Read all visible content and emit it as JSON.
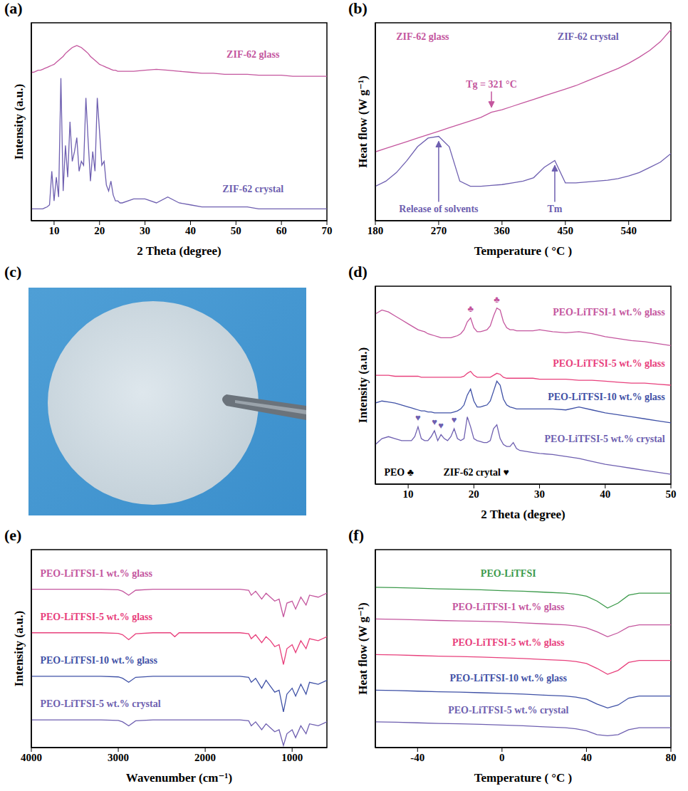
{
  "chart_data": [
    {
      "panel": "(a)",
      "type": "line",
      "x_label": "2 Theta (degree)",
      "y_label": "Intensity (a.u.)",
      "tick_labels": "x",
      "grid": false,
      "xlim": [
        5,
        70
      ],
      "xticks": [
        10,
        20,
        30,
        40,
        50,
        60,
        70
      ],
      "ylim": [
        0,
        100
      ],
      "x": [
        5,
        5.5,
        6,
        6.5,
        7,
        7.5,
        8,
        8.5,
        9,
        9.5,
        10,
        10.5,
        11,
        11.5,
        12,
        12.5,
        13,
        13.5,
        14,
        14.5,
        15,
        15.5,
        16,
        16.5,
        17,
        17.5,
        18,
        18.5,
        19,
        19.5,
        20,
        20.5,
        21,
        21.5,
        22,
        22.5,
        23,
        23.5,
        24,
        24.5,
        25,
        27.5,
        30,
        32.5,
        35,
        37.5,
        40,
        42.5,
        45,
        47.5,
        50,
        52.5,
        55,
        57.5,
        60,
        62.5,
        65,
        67.5,
        70
      ],
      "series": [
        {
          "name": "ZIF-62 glass",
          "color": "#c4569e",
          "values": [
            75,
            75,
            75.5,
            76,
            76,
            76.5,
            77,
            77.5,
            78,
            78.5,
            79,
            80,
            81,
            82,
            83,
            84.5,
            85.5,
            86.5,
            87.5,
            88,
            88.5,
            88,
            87.5,
            86.5,
            85.5,
            84.5,
            83,
            82,
            81,
            80,
            79,
            78.5,
            78,
            77.5,
            77,
            76.5,
            76,
            76,
            75.5,
            75.5,
            75.5,
            75.5,
            76,
            76.5,
            76,
            75.5,
            75,
            74.5,
            74.5,
            74,
            74,
            74,
            73.5,
            73.5,
            73.5,
            73,
            73,
            73,
            73
          ]
        },
        {
          "name": "ZIF-62 crystal",
          "color": "#6e5fb0",
          "values": [
            6,
            6,
            6,
            6,
            6,
            6,
            6.5,
            7,
            8,
            25,
            10,
            22,
            12,
            72,
            15,
            38,
            22,
            50,
            30,
            35,
            42,
            25,
            30,
            28,
            62,
            40,
            20,
            35,
            25,
            62,
            45,
            28,
            30,
            18,
            15,
            20,
            13,
            10,
            10,
            9,
            9,
            11,
            11,
            9,
            12,
            9,
            8,
            7,
            7,
            7,
            7,
            7,
            6,
            6,
            6,
            6,
            6,
            6,
            6
          ]
        }
      ]
    },
    {
      "panel": "(b)",
      "type": "line",
      "x_label": "Temperature ( °C )",
      "y_label": "Heat flow (W g⁻¹)",
      "tick_labels": "x",
      "grid": false,
      "xlim": [
        180,
        600
      ],
      "xticks": [
        180,
        270,
        360,
        450,
        540
      ],
      "ylim": [
        -15,
        100
      ],
      "x": [
        180,
        195,
        210,
        225,
        240,
        255,
        270,
        285,
        300,
        315,
        330,
        345,
        360,
        375,
        390,
        405,
        420,
        435,
        450,
        465,
        480,
        495,
        510,
        525,
        540,
        555,
        570,
        585,
        600
      ],
      "series": [
        {
          "name": "ZIF-62 glass",
          "color": "#c4569e",
          "values": [
            25,
            27,
            29,
            31,
            33,
            35,
            37,
            39,
            41,
            43,
            45,
            48,
            49.5,
            51.5,
            53.5,
            55.5,
            57.5,
            59.5,
            61.5,
            63.5,
            66,
            68.5,
            71,
            73.5,
            76.5,
            80,
            84,
            89,
            96
          ]
        },
        {
          "name": "ZIF-62 crystal",
          "color": "#6e5fb0",
          "values": [
            5,
            8,
            13,
            20,
            28,
            33,
            34,
            28,
            8,
            5,
            5,
            5.5,
            6,
            7,
            8,
            10,
            16,
            20,
            7,
            7,
            7.5,
            8,
            8.5,
            9.5,
            11,
            13,
            16,
            19,
            24
          ]
        }
      ],
      "annotations": [
        {
          "text": "Tg = 321 °C",
          "x": 345,
          "series": "ZIF-62 glass"
        },
        {
          "text": "Release of solvents",
          "x": 270,
          "series": "ZIF-62 crystal"
        },
        {
          "text": "Tm",
          "x": 435,
          "series": "ZIF-62 crystal"
        }
      ]
    },
    {
      "panel": "(c)",
      "type": "image"
    },
    {
      "panel": "(d)",
      "type": "line",
      "x_label": "2 Theta (degree)",
      "y_label": "Intensity (a.u.)",
      "tick_labels": "x",
      "grid": false,
      "xlim": [
        5,
        50
      ],
      "xticks": [
        10,
        20,
        30,
        40,
        50
      ],
      "ylim": [
        0,
        100
      ],
      "x": [
        5,
        6,
        7,
        8,
        9,
        10,
        10.5,
        11,
        11.5,
        12,
        12.5,
        13,
        13.5,
        14,
        14.5,
        15,
        15.5,
        16,
        16.5,
        17,
        17.5,
        18,
        18.5,
        19,
        19.5,
        20,
        20.5,
        21,
        21.5,
        22,
        22.5,
        23,
        23.5,
        24,
        24.5,
        25,
        25.5,
        26,
        26.5,
        27,
        28,
        29,
        30,
        32,
        34,
        36,
        38,
        40,
        42,
        44,
        46,
        48,
        50
      ],
      "series": [
        {
          "name": "PEO-LiTFSI-1 wt.% glass",
          "color": "#c4569e",
          "values": [
            86,
            88,
            87,
            85,
            83,
            81,
            80,
            79,
            78,
            77.5,
            77,
            76,
            75.5,
            75,
            74.5,
            74,
            74,
            74,
            74,
            74.5,
            75,
            76,
            78,
            82,
            84,
            79,
            77,
            77,
            77.5,
            78,
            80,
            85,
            89,
            88,
            82,
            79,
            78,
            78,
            77.5,
            77.5,
            77.5,
            77.5,
            78,
            77,
            76.5,
            77,
            76,
            74.5,
            73.5,
            72.5,
            72,
            71,
            70
          ]
        },
        {
          "name": "PEO-LiTFSI-5 wt.% glass",
          "color": "#e8407c",
          "values": [
            55,
            55,
            55,
            54.5,
            54.5,
            54.5,
            54.5,
            54.5,
            54.5,
            54,
            54,
            54,
            54,
            54,
            54,
            54,
            54,
            54,
            54,
            54,
            54,
            54,
            54.5,
            56,
            57,
            55,
            54,
            54,
            54,
            54,
            54,
            55,
            56,
            55.5,
            54,
            53.5,
            53.5,
            53.5,
            53.5,
            53.5,
            53.5,
            53.5,
            53,
            53,
            53,
            52.5,
            52.5,
            52,
            51.5,
            51,
            51,
            50.5,
            50
          ]
        },
        {
          "name": "PEO-LiTFSI-10 wt.% glass",
          "color": "#3f51a6",
          "values": [
            41,
            42,
            41.5,
            41,
            40,
            39,
            38.5,
            38,
            37.5,
            37,
            37,
            36.5,
            36.5,
            36,
            36,
            36,
            36,
            36,
            36,
            36.5,
            37,
            38,
            40,
            45,
            48,
            42,
            39,
            39,
            39.5,
            40,
            42,
            47,
            52,
            50,
            43,
            40,
            39,
            38.5,
            38,
            38,
            38,
            38,
            38,
            38,
            37.5,
            39,
            37.5,
            36,
            35,
            34,
            33,
            32,
            31
          ]
        },
        {
          "name": "PEO-LiTFSI-5 wt.% crystal",
          "color": "#6e5fb0",
          "values": [
            20,
            23,
            24,
            23,
            22,
            22,
            22,
            24,
            29,
            23,
            22,
            22,
            24,
            27,
            22,
            25,
            23,
            22,
            24,
            28,
            23,
            22,
            23,
            34,
            29,
            23,
            22,
            21.5,
            21,
            21,
            22,
            28,
            30,
            23,
            20,
            19,
            19,
            21,
            18,
            17,
            16.5,
            16,
            15.5,
            15,
            14,
            13,
            11.5,
            10,
            9,
            8,
            7,
            6,
            5
          ]
        }
      ],
      "markers": [
        {
          "text": "♣",
          "x": 19.5,
          "series": "PEO-LiTFSI-1 wt.% glass"
        },
        {
          "text": "♣",
          "x": 23.5,
          "series": "PEO-LiTFSI-1 wt.% glass"
        },
        {
          "text": "♥",
          "x": 11.5,
          "series": "PEO-LiTFSI-5 wt.% crystal"
        },
        {
          "text": "♥",
          "x": 14,
          "series": "PEO-LiTFSI-5 wt.% crystal"
        },
        {
          "text": "♥",
          "x": 15,
          "series": "PEO-LiTFSI-5 wt.% crystal"
        },
        {
          "text": "♥",
          "x": 17,
          "series": "PEO-LiTFSI-5 wt.% crystal"
        }
      ],
      "annotations": [
        "PEO ♣",
        "ZIF-62 crytal ♥"
      ]
    },
    {
      "panel": "(e)",
      "type": "line",
      "x_label": "Wavenumber (cm⁻¹)",
      "y_label": "Intensity (a.u.)",
      "tick_labels": "x",
      "grid": false,
      "xlim": [
        4000,
        600
      ],
      "xticks": [
        4000,
        3000,
        2000,
        1000
      ],
      "ylim": [
        0,
        100
      ],
      "x": [
        4000,
        3600,
        3200,
        3000,
        2950,
        2880,
        2800,
        2600,
        2400,
        2350,
        2300,
        2000,
        1600,
        1500,
        1470,
        1420,
        1350,
        1300,
        1250,
        1200,
        1150,
        1100,
        1060,
        1000,
        960,
        900,
        840,
        800,
        700,
        600
      ],
      "series": [
        {
          "name": "PEO-LiTFSI-1 wt.% glass",
          "color": "#c4569e",
          "values": [
            80,
            80,
            80,
            79.7,
            79,
            77,
            79.5,
            80,
            80,
            80,
            80,
            80,
            80,
            79.5,
            77,
            79,
            75,
            78,
            76,
            74,
            75,
            66,
            73,
            74,
            70,
            76,
            72,
            77,
            76,
            78
          ]
        },
        {
          "name": "PEO-LiTFSI-5 wt.% glass",
          "color": "#e8407c",
          "values": [
            58,
            58,
            58,
            57.7,
            57,
            54.5,
            57.5,
            58,
            58,
            56,
            58,
            58,
            58,
            57.5,
            55,
            57,
            53,
            56,
            54,
            51,
            52,
            42,
            50,
            52,
            48,
            54,
            50,
            55,
            54,
            56
          ]
        },
        {
          "name": "PEO-LiTFSI-10 wt.% glass",
          "color": "#3f51a6",
          "values": [
            36,
            36,
            36,
            35.7,
            35,
            33,
            35.5,
            36,
            36,
            36,
            36,
            36,
            36,
            35.5,
            33,
            35,
            30,
            34,
            31,
            28,
            29,
            18,
            27,
            30,
            26,
            32,
            27,
            33,
            32,
            34
          ]
        },
        {
          "name": "PEO-LiTFSI-5 wt.% crystal",
          "color": "#6e5fb0",
          "values": [
            14,
            14,
            14,
            13.7,
            13,
            11,
            13.5,
            14,
            14,
            14,
            14,
            14,
            14,
            13.5,
            11,
            13,
            9,
            12,
            10,
            8,
            9,
            1,
            7,
            9,
            5,
            11,
            7,
            12,
            11,
            13
          ]
        }
      ]
    },
    {
      "panel": "(f)",
      "type": "line",
      "x_label": "Temperature ( °C )",
      "y_label": "Heat flow (W g⁻¹)",
      "tick_labels": "x",
      "grid": false,
      "xlim": [
        -60,
        80
      ],
      "xticks": [
        -40,
        0,
        40,
        80
      ],
      "ylim": [
        0,
        100
      ],
      "x": [
        -60,
        -50,
        -40,
        -30,
        -20,
        -10,
        0,
        10,
        20,
        30,
        35,
        40,
        45,
        50,
        55,
        60,
        65,
        70,
        80
      ],
      "series": [
        {
          "name": "PEO-LiTFSI",
          "color": "#3c9a4b",
          "values": [
            81,
            80.8,
            80.5,
            80.2,
            80,
            79.7,
            79.3,
            79,
            78.5,
            78,
            77.5,
            76.5,
            74,
            70.5,
            73,
            77,
            78,
            78,
            78
          ]
        },
        {
          "name": "PEO-LiTFSI-1 wt.% glass",
          "color": "#c4569e",
          "values": [
            65,
            64.8,
            64.5,
            64.2,
            64,
            63.8,
            63.5,
            63,
            62.5,
            62,
            61.5,
            60.5,
            58.5,
            56,
            58,
            61,
            62,
            62,
            62
          ]
        },
        {
          "name": "PEO-LiTFSI-5 wt.% glass",
          "color": "#e8407c",
          "values": [
            47,
            46.8,
            46.5,
            46.2,
            46,
            45.7,
            45.4,
            45,
            44.5,
            44,
            43.5,
            42.5,
            40,
            37,
            39,
            43,
            44,
            44,
            44
          ]
        },
        {
          "name": "PEO-LiTFSI-10 wt.% glass",
          "color": "#3f51a6",
          "values": [
            29,
            28.8,
            28.5,
            28.2,
            28,
            27.7,
            27.4,
            27,
            26.5,
            26,
            25.5,
            24.5,
            22,
            20,
            21.5,
            25,
            26,
            26,
            26
          ]
        },
        {
          "name": "PEO-LiTFSI-5 wt.% crystal",
          "color": "#6e5fb0",
          "values": [
            13,
            12.8,
            12.5,
            12.2,
            12,
            11.7,
            11.4,
            11,
            10.5,
            10,
            9.5,
            8.5,
            6.5,
            6,
            6.5,
            9,
            10,
            10,
            10
          ]
        }
      ]
    }
  ]
}
